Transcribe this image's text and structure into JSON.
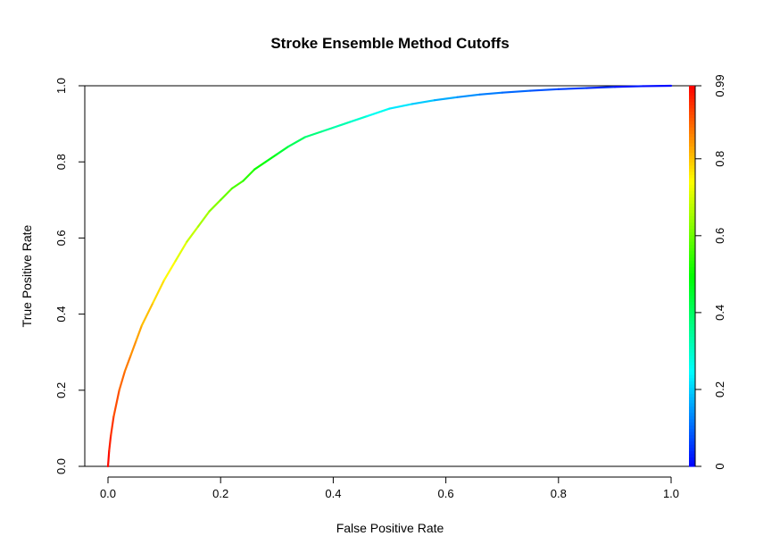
{
  "chart_data": {
    "type": "line",
    "title": "Stroke Ensemble Method Cutoffs",
    "xlabel": "False Positive Rate",
    "ylabel": "True Positive Rate",
    "xlim": [
      0,
      1
    ],
    "ylim": [
      0,
      1
    ],
    "x_ticks": [
      "0.0",
      "0.2",
      "0.4",
      "0.6",
      "0.8",
      "1.0"
    ],
    "y_ticks": [
      "0.0",
      "0.2",
      "0.4",
      "0.6",
      "0.8",
      "1.0"
    ],
    "grid": false,
    "colorbar": {
      "tick_labels": [
        "0",
        "0.2",
        "0.4",
        "0.6",
        "0.8",
        "0.99"
      ],
      "tick_values": [
        0,
        0.2,
        0.4,
        0.6,
        0.8,
        0.99
      ],
      "range": [
        0,
        0.99
      ],
      "colors": [
        "#0000ff",
        "#00ffff",
        "#00ff00",
        "#ffff00",
        "#ff0000"
      ]
    },
    "series": [
      {
        "color_mapping": "cutoff",
        "x": [
          0.0,
          0.002,
          0.005,
          0.01,
          0.02,
          0.03,
          0.04,
          0.05,
          0.06,
          0.08,
          0.1,
          0.12,
          0.14,
          0.16,
          0.18,
          0.2,
          0.22,
          0.24,
          0.26,
          0.28,
          0.3,
          0.32,
          0.35,
          0.38,
          0.4,
          0.43,
          0.46,
          0.5,
          0.54,
          0.58,
          0.62,
          0.66,
          0.7,
          0.75,
          0.8,
          0.85,
          0.9,
          0.95,
          1.0
        ],
        "y": [
          0.0,
          0.04,
          0.08,
          0.13,
          0.2,
          0.25,
          0.29,
          0.33,
          0.37,
          0.43,
          0.49,
          0.54,
          0.59,
          0.63,
          0.67,
          0.7,
          0.73,
          0.75,
          0.78,
          0.8,
          0.82,
          0.84,
          0.865,
          0.88,
          0.89,
          0.905,
          0.92,
          0.94,
          0.952,
          0.962,
          0.97,
          0.977,
          0.982,
          0.987,
          0.991,
          0.994,
          0.997,
          0.999,
          1.0
        ],
        "cutoff": [
          0.99,
          0.97,
          0.95,
          0.93,
          0.9,
          0.88,
          0.86,
          0.84,
          0.82,
          0.79,
          0.76,
          0.73,
          0.7,
          0.67,
          0.64,
          0.61,
          0.58,
          0.55,
          0.52,
          0.49,
          0.46,
          0.43,
          0.39,
          0.36,
          0.34,
          0.31,
          0.28,
          0.24,
          0.21,
          0.18,
          0.15,
          0.13,
          0.11,
          0.09,
          0.07,
          0.05,
          0.03,
          0.015,
          0.0
        ]
      }
    ]
  }
}
